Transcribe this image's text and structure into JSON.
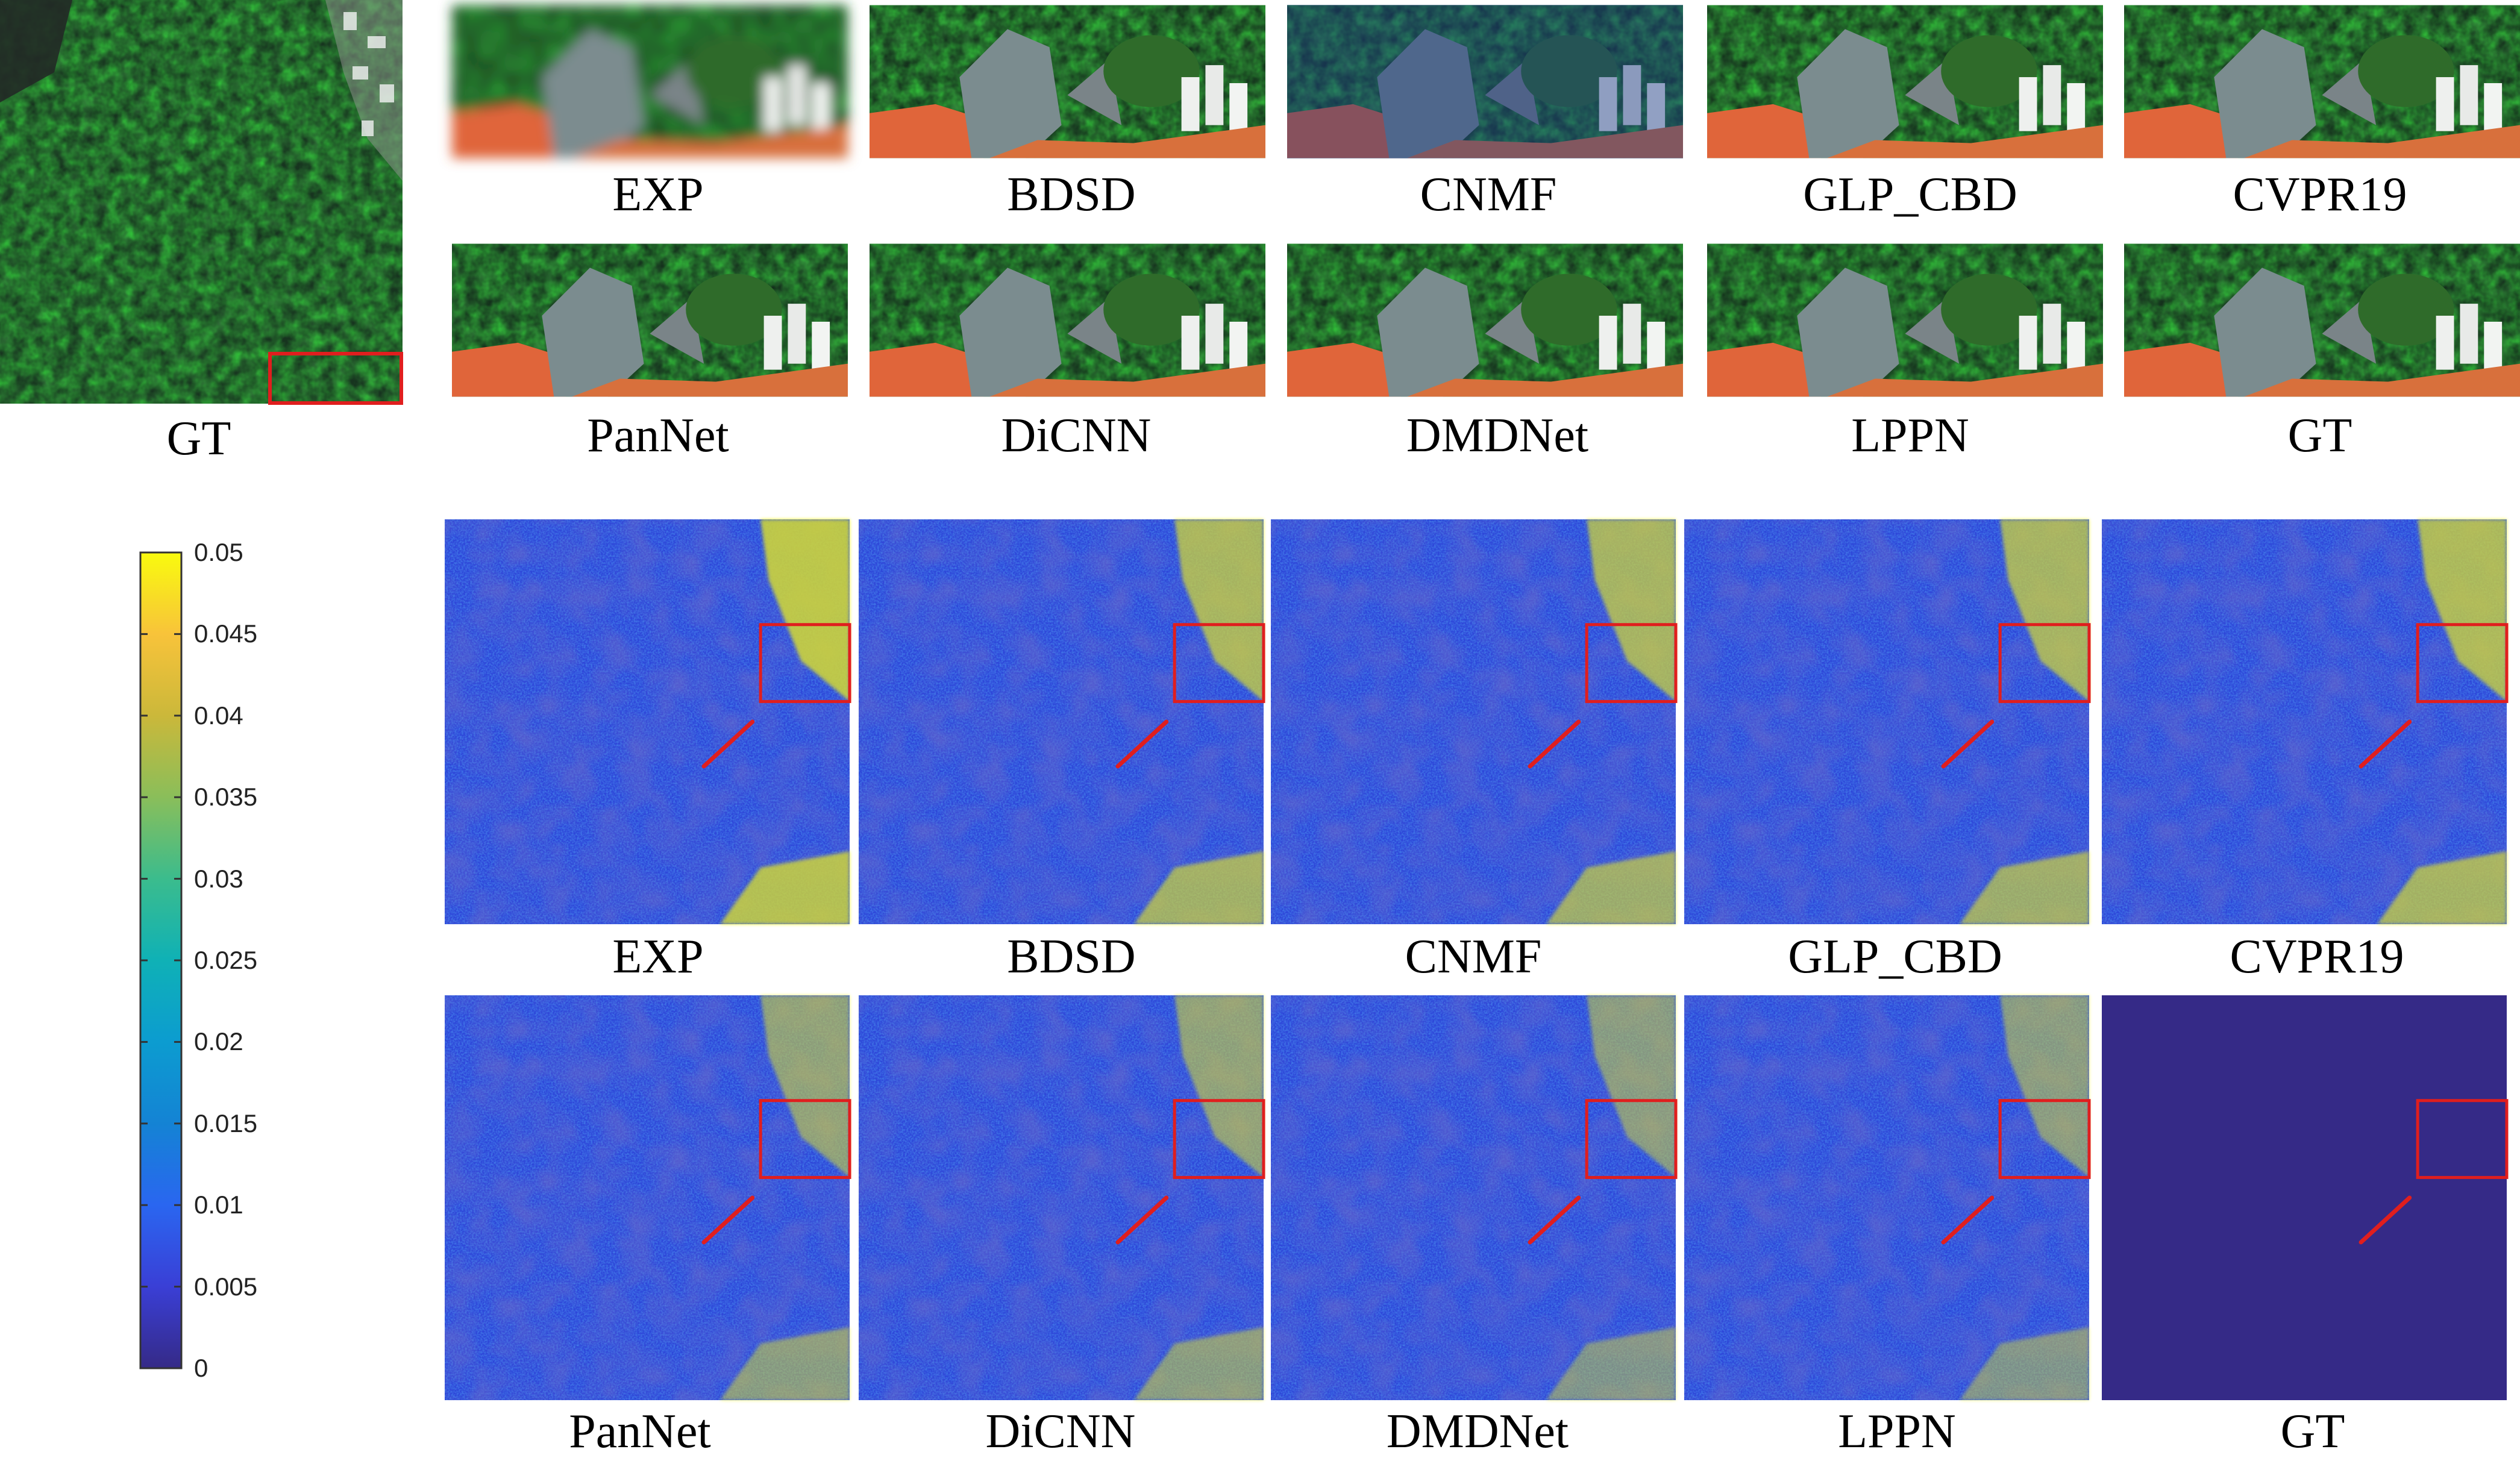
{
  "figure": {
    "top_rows": {
      "overview_caption": "GT",
      "row1_captions": [
        "EXP",
        "BDSD",
        "CNMF",
        "GLP_CBD",
        "CVPR19"
      ],
      "row2_captions": [
        "PanNet",
        "DiCNN",
        "DMDNet",
        "LPPN",
        "GT"
      ]
    },
    "error_maps": {
      "row1_captions": [
        "EXP",
        "BDSD",
        "CNMF",
        "GLP_CBD",
        "CVPR19"
      ],
      "row2_captions": [
        "PanNet",
        "DiCNN",
        "DMDNet",
        "LPPN",
        "GT"
      ]
    },
    "colorbar": {
      "tick_labels": [
        "0.05",
        "0.045",
        "0.04",
        "0.035",
        "0.03",
        "0.025",
        "0.02",
        "0.015",
        "0.01",
        "0.005",
        "0"
      ],
      "range": [
        0,
        0.05
      ],
      "colormap": "parula"
    },
    "colors": {
      "highlight_box": "#e01e1e",
      "arrow": "#e01e1e",
      "parula_low": "#352a87",
      "parula_mid": "#17adc7",
      "parula_high": "#f9fb0e"
    }
  }
}
